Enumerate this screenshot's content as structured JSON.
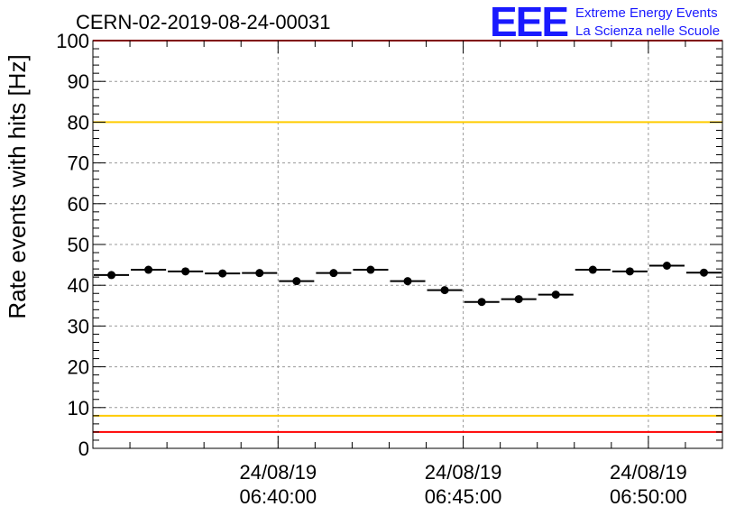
{
  "header": {
    "run_title": "CERN-02-2019-08-24-00031",
    "logo_mark": "EEE",
    "logo_line1": "Extreme Energy Events",
    "logo_line2": "La Scienza nelle Scuole"
  },
  "colors": {
    "limit_red": "#ff0000",
    "limit_yellow": "#ffcc00",
    "logo_blue": "#1a1aff",
    "grid": "#999999",
    "marker": "#000000"
  },
  "chart_data": {
    "type": "scatter",
    "title": "CERN-02-2019-08-24-00031",
    "xlabel": "",
    "ylabel": "Rate events with hits [Hz]",
    "x_unit": "minutes after 06:35:00 on 24/08/19",
    "xlim": [
      0,
      17
    ],
    "ylim": [
      0,
      100
    ],
    "grid": true,
    "y_ticks": [
      0,
      10,
      20,
      30,
      40,
      50,
      60,
      70,
      80,
      90,
      100
    ],
    "x_ticks": [
      {
        "x": 5,
        "date": "24/08/19",
        "time": "06:40:00"
      },
      {
        "x": 10,
        "date": "24/08/19",
        "time": "06:45:00"
      },
      {
        "x": 15,
        "date": "24/08/19",
        "time": "06:50:00"
      }
    ],
    "bin_width": 1,
    "series": [
      {
        "x": [
          0.5,
          1.5,
          2.5,
          3.5,
          4.5,
          5.5,
          6.5,
          7.5,
          8.5,
          9.5,
          10.5,
          11.5,
          12.5,
          13.5,
          14.5,
          15.5,
          16.5
        ],
        "values": [
          42.5,
          43.8,
          43.4,
          42.9,
          43.0,
          41.0,
          43.0,
          43.8,
          41.0,
          38.8,
          35.9,
          36.6,
          37.7,
          43.8,
          43.4,
          44.8,
          43.1
        ]
      }
    ],
    "reference_lines": [
      {
        "y": 100,
        "color": "#ff0000"
      },
      {
        "y": 80,
        "color": "#ffcc00"
      },
      {
        "y": 8,
        "color": "#ffcc00"
      },
      {
        "y": 4,
        "color": "#ff0000"
      }
    ]
  }
}
